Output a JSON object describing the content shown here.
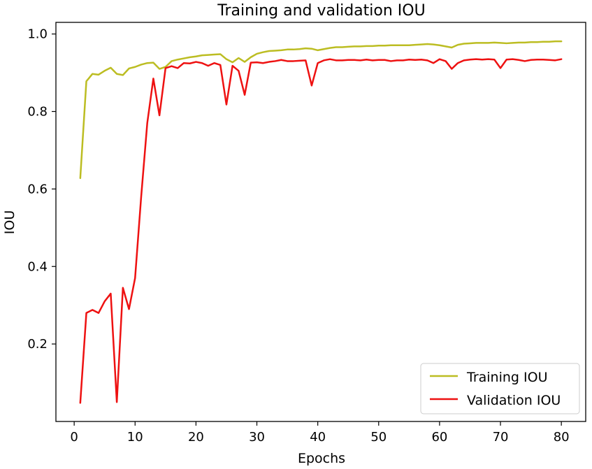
{
  "chart_data": {
    "type": "line",
    "title": "Training and validation IOU",
    "xlabel": "Epochs",
    "ylabel": "IOU",
    "xlim": [
      -3,
      84
    ],
    "ylim": [
      0,
      1.03
    ],
    "x_ticks": [
      0,
      10,
      20,
      30,
      40,
      50,
      60,
      70,
      80
    ],
    "y_ticks": [
      0.2,
      0.4,
      0.6,
      0.8,
      1.0
    ],
    "y_tick_labels": [
      "0.2",
      "0.4",
      "0.6",
      "0.8",
      "1.0"
    ],
    "grid": false,
    "legend_position": "lower-right",
    "x": [
      1,
      2,
      3,
      4,
      5,
      6,
      7,
      8,
      9,
      10,
      11,
      12,
      13,
      14,
      15,
      16,
      17,
      18,
      19,
      20,
      21,
      22,
      23,
      24,
      25,
      26,
      27,
      28,
      29,
      30,
      31,
      32,
      33,
      34,
      35,
      36,
      37,
      38,
      39,
      40,
      41,
      42,
      43,
      44,
      45,
      46,
      47,
      48,
      49,
      50,
      51,
      52,
      53,
      54,
      55,
      56,
      57,
      58,
      59,
      60,
      61,
      62,
      63,
      64,
      65,
      66,
      67,
      68,
      69,
      70,
      71,
      72,
      73,
      74,
      75,
      76,
      77,
      78,
      79,
      80
    ],
    "series": [
      {
        "name": "Training IOU",
        "color": "#bcbd22",
        "values": [
          0.628,
          0.878,
          0.897,
          0.895,
          0.905,
          0.913,
          0.897,
          0.894,
          0.911,
          0.915,
          0.921,
          0.925,
          0.926,
          0.91,
          0.915,
          0.93,
          0.934,
          0.937,
          0.94,
          0.942,
          0.945,
          0.946,
          0.947,
          0.948,
          0.935,
          0.927,
          0.938,
          0.928,
          0.94,
          0.949,
          0.953,
          0.956,
          0.957,
          0.958,
          0.96,
          0.96,
          0.961,
          0.963,
          0.962,
          0.958,
          0.961,
          0.964,
          0.966,
          0.966,
          0.967,
          0.968,
          0.968,
          0.969,
          0.969,
          0.97,
          0.97,
          0.971,
          0.971,
          0.971,
          0.971,
          0.972,
          0.973,
          0.974,
          0.973,
          0.971,
          0.968,
          0.965,
          0.972,
          0.975,
          0.976,
          0.977,
          0.977,
          0.977,
          0.978,
          0.977,
          0.976,
          0.977,
          0.978,
          0.978,
          0.979,
          0.979,
          0.98,
          0.98,
          0.981,
          0.981
        ]
      },
      {
        "name": "Validation IOU",
        "color": "#ee1111",
        "values": [
          0.048,
          0.28,
          0.288,
          0.28,
          0.31,
          0.33,
          0.05,
          0.345,
          0.29,
          0.37,
          0.58,
          0.77,
          0.885,
          0.79,
          0.912,
          0.917,
          0.912,
          0.925,
          0.924,
          0.928,
          0.925,
          0.918,
          0.925,
          0.92,
          0.818,
          0.918,
          0.905,
          0.843,
          0.926,
          0.927,
          0.925,
          0.928,
          0.93,
          0.933,
          0.93,
          0.93,
          0.931,
          0.932,
          0.867,
          0.925,
          0.932,
          0.935,
          0.932,
          0.932,
          0.933,
          0.933,
          0.932,
          0.934,
          0.932,
          0.933,
          0.933,
          0.93,
          0.932,
          0.932,
          0.934,
          0.933,
          0.934,
          0.932,
          0.925,
          0.935,
          0.93,
          0.91,
          0.925,
          0.932,
          0.934,
          0.935,
          0.934,
          0.935,
          0.934,
          0.912,
          0.934,
          0.935,
          0.933,
          0.93,
          0.933,
          0.934,
          0.934,
          0.933,
          0.932,
          0.935
        ]
      }
    ]
  }
}
